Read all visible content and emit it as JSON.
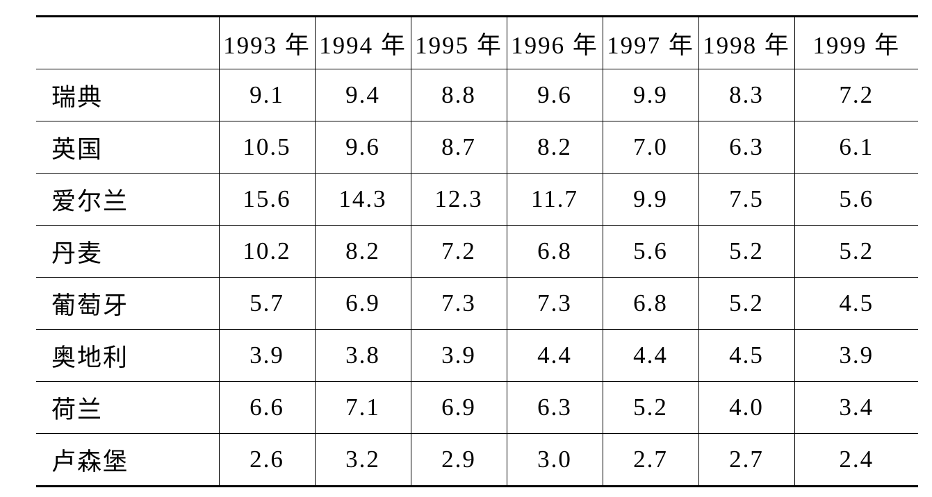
{
  "table": {
    "columns": [
      "1993 年",
      "1994 年",
      "1995 年",
      "1996 年",
      "1997 年",
      "1998 年",
      "1999 年"
    ],
    "rows": [
      {
        "label": "瑞典",
        "cells": [
          "9.1",
          "9.4",
          "8.8",
          "9.6",
          "9.9",
          "8.3",
          "7.2"
        ]
      },
      {
        "label": "英国",
        "cells": [
          "10.5",
          "9.6",
          "8.7",
          "8.2",
          "7.0",
          "6.3",
          "6.1"
        ]
      },
      {
        "label": "爱尔兰",
        "cells": [
          "15.6",
          "14.3",
          "12.3",
          "11.7",
          "9.9",
          "7.5",
          "5.6"
        ]
      },
      {
        "label": "丹麦",
        "cells": [
          "10.2",
          "8.2",
          "7.2",
          "6.8",
          "5.6",
          "5.2",
          "5.2"
        ]
      },
      {
        "label": "葡萄牙",
        "cells": [
          "5.7",
          "6.9",
          "7.3",
          "7.3",
          "6.8",
          "5.2",
          "4.5"
        ]
      },
      {
        "label": "奥地利",
        "cells": [
          "3.9",
          "3.8",
          "3.9",
          "4.4",
          "4.4",
          "4.5",
          "3.9"
        ]
      },
      {
        "label": "荷兰",
        "cells": [
          "6.6",
          "7.1",
          "6.9",
          "6.3",
          "5.2",
          "4.0",
          "3.4"
        ]
      },
      {
        "label": "卢森堡",
        "cells": [
          "2.6",
          "3.2",
          "2.9",
          "3.0",
          "2.7",
          "2.7",
          "2.4"
        ]
      }
    ]
  }
}
